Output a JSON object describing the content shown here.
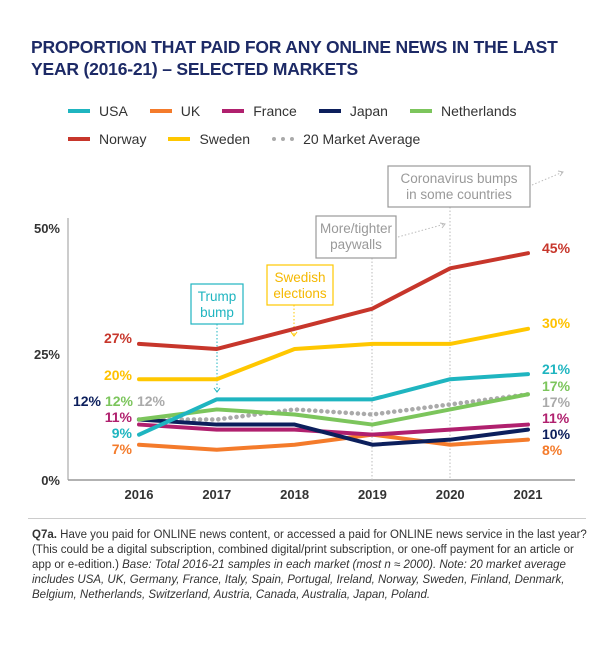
{
  "title": "PROPORTION THAT PAID FOR ANY ONLINE NEWS IN THE LAST YEAR (2016-21) – SELECTED MARKETS",
  "chart_data": {
    "type": "line",
    "title": "PROPORTION THAT PAID FOR ANY ONLINE NEWS IN THE LAST YEAR (2016-21) – SELECTED MARKETS",
    "x": [
      "2016",
      "2017",
      "2018",
      "2019",
      "2020",
      "2021"
    ],
    "ylim": [
      0,
      50
    ],
    "yticks": [
      "0%",
      "25%",
      "50%"
    ],
    "grid": false,
    "legend": "top",
    "series": [
      {
        "name": "USA",
        "color": "#1fb5c0",
        "values": [
          9,
          16,
          16,
          16,
          20,
          21
        ],
        "start_label": "9%",
        "end_label": "21%"
      },
      {
        "name": "UK",
        "color": "#f47b2b",
        "values": [
          7,
          6,
          7,
          9,
          7,
          8
        ],
        "start_label": "7%",
        "end_label": "8%"
      },
      {
        "name": "France",
        "color": "#b0206e",
        "values": [
          11,
          10,
          10,
          9,
          10,
          11
        ],
        "start_label": "11%",
        "end_label": "11%"
      },
      {
        "name": "Japan",
        "color": "#0c1f5c",
        "values": [
          12,
          11,
          11,
          7,
          8,
          10
        ],
        "start_label": "12%",
        "end_label": "10%"
      },
      {
        "name": "Netherlands",
        "color": "#7cc55c",
        "values": [
          12,
          14,
          13,
          11,
          14,
          17
        ],
        "start_label": "12%",
        "end_label": "17%"
      },
      {
        "name": "Norway",
        "color": "#c7362b",
        "values": [
          27,
          26,
          30,
          34,
          42,
          45
        ],
        "start_label": "27%",
        "end_label": "45%"
      },
      {
        "name": "Sweden",
        "color": "#ffc700",
        "values": [
          20,
          20,
          26,
          27,
          27,
          30
        ],
        "start_label": "20%",
        "end_label": "30%"
      },
      {
        "name": "20 Market Average",
        "color": "#aaaaaa",
        "dotted": true,
        "values": [
          12,
          12,
          14,
          13,
          15,
          17
        ],
        "start_label": "12%",
        "end_label": "17%"
      }
    ],
    "annotations": [
      {
        "text": [
          "Trump",
          "bump"
        ],
        "year": "2017",
        "color": "#1fb5c0"
      },
      {
        "text": [
          "Swedish",
          "elections"
        ],
        "year": "2018",
        "color": "#ffc700"
      },
      {
        "text": [
          "More/tighter",
          "paywalls"
        ],
        "year": "2019",
        "color": "#999999"
      },
      {
        "text": [
          "Coronavirus bumps",
          "in some countries"
        ],
        "year": "2020",
        "color": "#999999"
      }
    ]
  },
  "footnote": {
    "q_label": "Q7a.",
    "question": " Have you paid for ONLINE news content, or accessed a paid for ONLINE news service in the last year? (This could be a digital subscription, combined digital/print subscription, or one-off payment for an article or app or e-edition.) ",
    "note": "Base: Total 2016-21 samples in each market (most n ≈ 2000). Note: 20 market average includes USA, UK, Germany, France, Italy, Spain, Portugal, Ireland, Norway, Sweden, Finland, Denmark, Belgium, Netherlands, Switzerland, Austria, Canada, Australia, Japan, Poland."
  }
}
